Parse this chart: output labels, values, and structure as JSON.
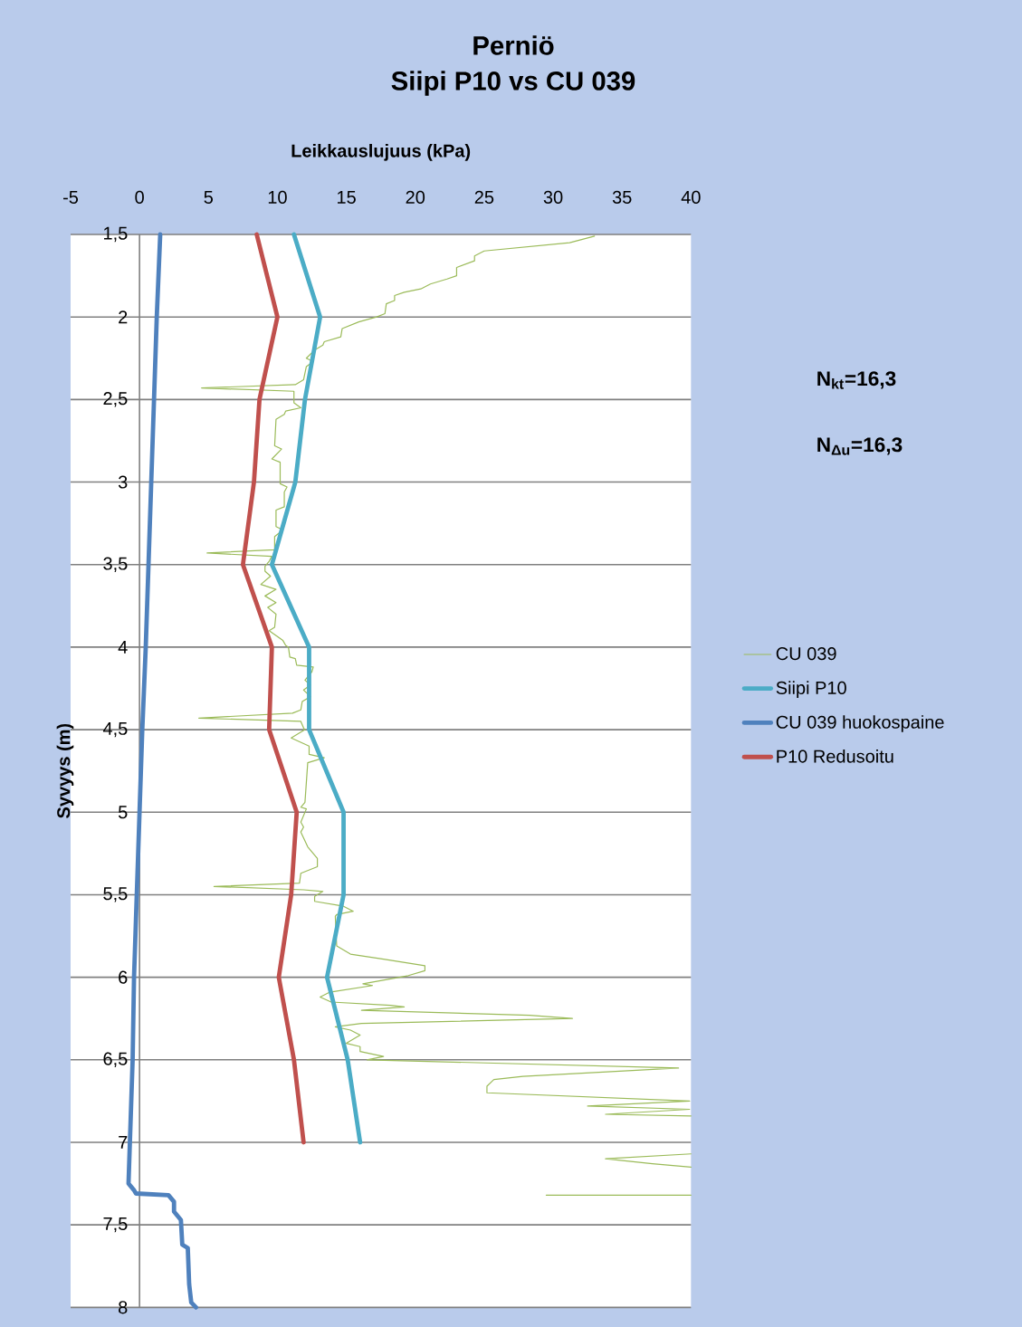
{
  "chart_data": {
    "type": "line",
    "title": "Perniö",
    "subtitle": "Siipi P10 vs CU 039",
    "xlabel": "Leikkauslujuus (kPa)",
    "ylabel": "Syvyys (m)",
    "xlim": [
      -5,
      40
    ],
    "xticks": [
      -5,
      0,
      5,
      10,
      15,
      20,
      25,
      30,
      35,
      40
    ],
    "ylim": [
      8,
      1.5
    ],
    "yticks": [
      {
        "value": 1.5,
        "label": "1,5"
      },
      2,
      {
        "value": 2.5,
        "label": "2,5"
      },
      3,
      {
        "value": 3.5,
        "label": "3,5"
      },
      4,
      {
        "value": 4.5,
        "label": "4,5"
      },
      5,
      {
        "value": 5.5,
        "label": "5,5"
      },
      6,
      {
        "value": 6.5,
        "label": "6,5"
      },
      7,
      {
        "value": 7.5,
        "label": "7,5"
      },
      8
    ],
    "grid": "y",
    "legend": "right",
    "marker": "none",
    "line_style": "solid",
    "annotations": [
      "N$_{kt}$=16,3",
      "N$_{Δu}$=16,3"
    ],
    "series": [
      {
        "name": "CU  039",
        "color": "#9bbb59",
        "x": [
          33.0,
          31.2,
          25.0,
          24.3,
          24.3,
          23.0,
          23.0,
          22.3,
          21.1,
          20.4,
          19.2,
          18.5,
          18.5,
          17.9,
          17.8,
          17.2,
          15.9,
          14.7,
          14.6,
          13.4,
          13.3,
          12.7,
          12.1,
          12.6,
          12.1,
          11.9,
          11.3,
          4.5,
          11.2,
          11.2,
          11.7,
          10.6,
          10.5,
          9.9,
          9.8,
          10.3,
          9.6,
          10.2,
          10.2,
          10.7,
          10.5,
          10.5,
          9.9,
          9.9,
          10.4,
          9.8,
          9.8,
          4.9,
          9.6,
          9.4,
          9.1,
          9.1,
          9.5,
          8.8,
          9.9,
          9.1,
          9.9,
          9.3,
          9.9,
          9.8,
          9.4,
          10.4,
          10.6,
          10.8,
          10.9,
          11.3,
          11.4,
          12.6,
          12.5,
          12.0,
          12.4,
          11.9,
          12.4,
          11.8,
          11.7,
          11.1,
          4.3,
          11.7,
          11.9,
          12.0,
          11.0,
          12.3,
          12.3,
          13.4,
          12.2,
          12.0,
          11.7,
          12.1,
          11.7,
          11.9,
          11.7,
          12.2,
          12.9,
          12.9,
          11.7,
          11.6,
          5.4,
          11.9,
          13.3,
          12.7,
          12.7,
          14.8,
          15.5,
          14.3,
          14.2,
          14.3,
          15.3,
          17.7,
          20.7,
          20.7,
          19.5,
          16.2,
          16.9,
          13.8,
          13.1,
          13.9,
          18.2,
          19.2,
          16.1,
          28.3,
          31.4,
          16.1,
          14.2,
          15.3,
          16.0,
          15.0,
          16.0,
          16.0,
          17.7,
          16.5,
          39.1,
          27.8,
          25.7,
          25.2,
          25.2,
          39.9,
          32.5,
          39.9,
          33.8,
          40,
          null,
          40,
          33.8,
          37.2,
          40,
          null,
          40,
          29.5
        ],
        "values": [
          1.51,
          1.55,
          1.6,
          1.63,
          1.66,
          1.7,
          1.75,
          1.77,
          1.8,
          1.83,
          1.85,
          1.87,
          1.9,
          1.92,
          1.98,
          2.0,
          2.03,
          2.07,
          2.12,
          2.15,
          2.17,
          2.2,
          2.25,
          2.27,
          2.3,
          2.38,
          2.41,
          2.43,
          2.45,
          2.52,
          2.55,
          2.57,
          2.59,
          2.62,
          2.78,
          2.8,
          2.86,
          2.88,
          3.01,
          3.03,
          3.06,
          3.15,
          3.17,
          3.27,
          3.29,
          3.33,
          3.41,
          3.43,
          3.45,
          3.48,
          3.51,
          3.54,
          3.57,
          3.62,
          3.65,
          3.69,
          3.73,
          3.76,
          3.8,
          3.88,
          3.9,
          3.96,
          3.99,
          4.0,
          4.06,
          4.07,
          4.11,
          4.12,
          4.15,
          4.2,
          4.23,
          4.26,
          4.3,
          4.33,
          4.38,
          4.4,
          4.43,
          4.45,
          4.49,
          4.5,
          4.55,
          4.6,
          4.65,
          4.67,
          4.7,
          4.94,
          4.97,
          4.98,
          5.06,
          5.09,
          5.12,
          5.21,
          5.28,
          5.33,
          5.37,
          5.43,
          5.45,
          5.47,
          5.48,
          5.51,
          5.54,
          5.57,
          5.6,
          5.62,
          5.63,
          5.81,
          5.86,
          5.89,
          5.93,
          5.96,
          5.99,
          6.04,
          6.05,
          6.09,
          6.12,
          6.15,
          6.17,
          6.18,
          6.2,
          6.23,
          6.25,
          6.28,
          6.3,
          6.32,
          6.35,
          6.4,
          6.42,
          6.45,
          6.48,
          6.5,
          6.55,
          6.6,
          6.62,
          6.66,
          6.7,
          6.75,
          6.78,
          6.8,
          6.83,
          6.84,
          null,
          7.07,
          7.1,
          7.13,
          7.15,
          null,
          7.32,
          7.32
        ]
      },
      {
        "name": "Siipi P10",
        "color": "#4bacc6",
        "x": [
          11.2,
          13.1,
          12.0,
          11.3,
          9.6,
          12.3,
          12.3,
          14.8,
          14.8,
          13.6,
          15.1,
          16.0
        ],
        "values": [
          1.5,
          2.0,
          2.5,
          3.0,
          3.5,
          4.0,
          4.5,
          5.0,
          5.5,
          6.0,
          6.5,
          7.0
        ]
      },
      {
        "name": "CU 039 huokospaine",
        "color": "#4f81bd",
        "x": [
          1.5,
          1.25,
          1.05,
          0.85,
          0.65,
          0.45,
          0.2,
          0.0,
          -0.2,
          -0.4,
          -0.5,
          -0.7,
          -0.8,
          -0.4,
          -0.26,
          2.1,
          2.5,
          2.5,
          3.0,
          3.1,
          3.5,
          3.6,
          3.75,
          4.1
        ],
        "values": [
          1.5,
          2.0,
          2.5,
          3.0,
          3.5,
          4.0,
          4.5,
          5.0,
          5.5,
          6.0,
          6.5,
          7.0,
          7.25,
          7.29,
          7.31,
          7.32,
          7.36,
          7.42,
          7.47,
          7.62,
          7.64,
          7.86,
          7.97,
          8.0
        ]
      },
      {
        "name": "P10 Redusoitu",
        "color": "#c0504d",
        "x": [
          8.5,
          10.0,
          8.7,
          8.3,
          7.5,
          9.6,
          9.4,
          11.4,
          11.0,
          10.1,
          11.2,
          11.9
        ],
        "values": [
          1.5,
          2.0,
          2.5,
          3.0,
          3.5,
          4.0,
          4.5,
          5.0,
          5.5,
          6.0,
          6.5,
          7.0
        ]
      }
    ]
  }
}
